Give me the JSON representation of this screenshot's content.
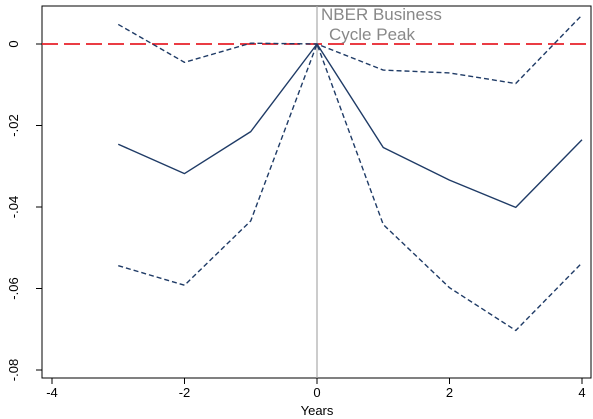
{
  "chart_data": {
    "type": "line",
    "title": "",
    "xlabel": "Years",
    "ylabel": "",
    "xlim": [
      -4,
      4
    ],
    "ylim": [
      -0.08,
      0
    ],
    "x_ticks": [
      -4,
      -2,
      0,
      2,
      4
    ],
    "x_tick_labels": [
      "-4",
      "-2",
      "0",
      "2",
      "4"
    ],
    "y_ticks": [
      0,
      -0.02,
      -0.04,
      -0.06,
      -0.08
    ],
    "y_tick_labels": [
      "0",
      "-.02",
      "-.04",
      "-.06",
      "-.08"
    ],
    "grid": false,
    "annotation": {
      "lines": [
        "NBER Business",
        "Cycle Peak"
      ],
      "x": 0
    },
    "reference_lines": [
      {
        "orientation": "horizontal",
        "value": 0,
        "color": "#e8202a",
        "style": "dashed"
      },
      {
        "orientation": "vertical",
        "value": 0,
        "color": "#aaaaaa",
        "style": "solid"
      }
    ],
    "x": [
      -3,
      -2,
      -1,
      0,
      1,
      2,
      3,
      4
    ],
    "series": [
      {
        "style": "solid",
        "color": "#1f3b66",
        "values": [
          -0.0246,
          -0.0318,
          -0.0215,
          0.0,
          -0.0254,
          -0.0334,
          -0.0401,
          -0.0235
        ]
      },
      {
        "style": "dashed",
        "color": "#1f3b66",
        "values": [
          0.0048,
          -0.0045,
          0.0002,
          0.0,
          -0.0064,
          -0.0071,
          -0.0097,
          0.0071
        ]
      },
      {
        "style": "dashed",
        "color": "#1f3b66",
        "values": [
          -0.0544,
          -0.0592,
          -0.0434,
          0.0,
          -0.0443,
          -0.0598,
          -0.0703,
          -0.0537
        ]
      }
    ]
  }
}
